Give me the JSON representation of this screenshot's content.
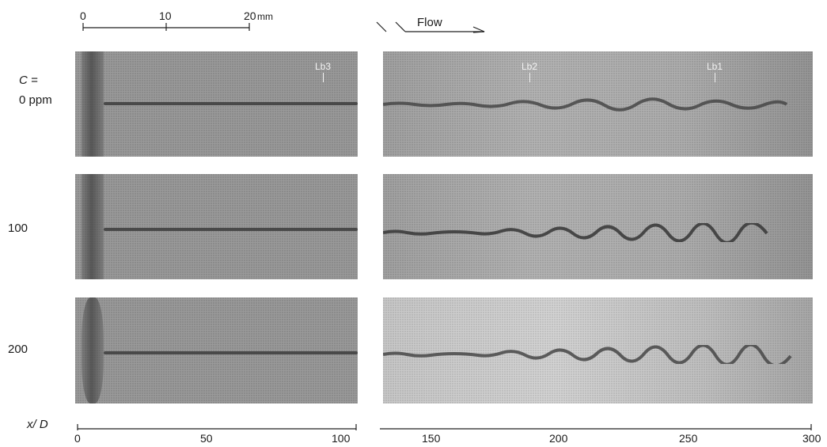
{
  "scale_bar": {
    "ticks": [
      "0",
      "10",
      "20"
    ],
    "unit": "mm"
  },
  "flow": {
    "label": "Flow"
  },
  "conc_header": {
    "symbol": "C =",
    "first_value": "0 ppm"
  },
  "rows": [
    {
      "label": "0 ppm",
      "markers_left": [
        "Lb3"
      ],
      "markers_right": [
        "Lb2",
        "Lb1"
      ]
    },
    {
      "label": "100",
      "markers_left": [],
      "markers_right": []
    },
    {
      "label": "200",
      "markers_left": [],
      "markers_right": []
    }
  ],
  "xaxis": {
    "label": "x/ D",
    "left_ticks": [
      "0",
      "50",
      "100"
    ],
    "right_ticks": [
      "150",
      "200",
      "250",
      "300"
    ]
  }
}
